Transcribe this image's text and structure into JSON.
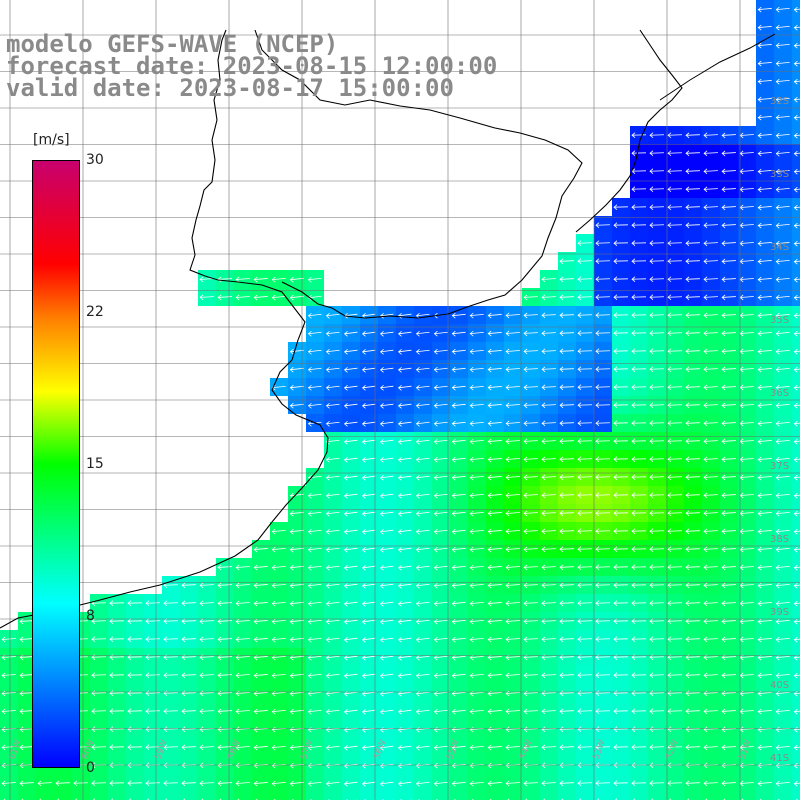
{
  "title": {
    "model": "modelo GEFS-WAVE (NCEP)",
    "forecast": "forecast date: 2023-08-15 12:00:00",
    "valid": "valid date: 2023-08-17 15:00:00"
  },
  "colorbar": {
    "unit": "[m/s]",
    "ticks": [
      "30",
      "22",
      "15",
      "8",
      "0"
    ]
  },
  "lat_labels": [
    "32S",
    "33S",
    "34S",
    "35S",
    "36S",
    "37S",
    "38S",
    "39S",
    "40S",
    "41S"
  ],
  "lon_labels": [
    "61W",
    "60W",
    "59W",
    "58W",
    "57W",
    "56W",
    "55W",
    "54W",
    "53W",
    "52W",
    "51W"
  ],
  "colors": {
    "land": "#ffffff",
    "coast": "#000000",
    "grid": "#6e6e6e",
    "arrows": "#ffffff"
  }
}
